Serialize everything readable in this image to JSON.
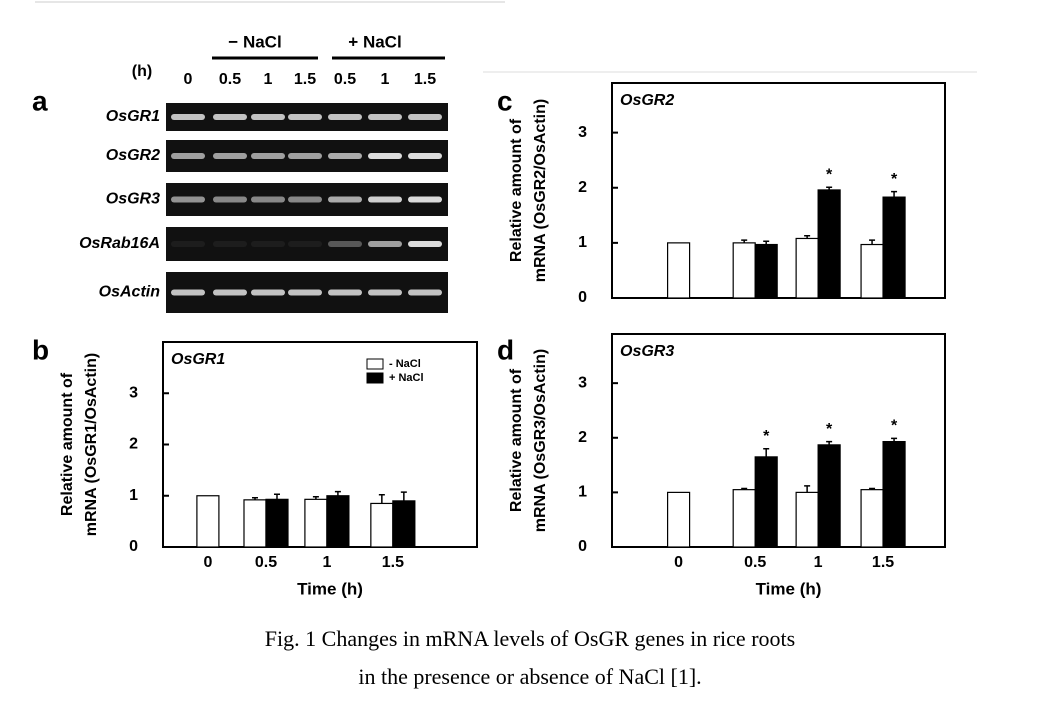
{
  "gel": {
    "panel": "a",
    "hours_label": "(h)",
    "groups": [
      "− NaCl",
      "+ NaCl"
    ],
    "lanes": [
      "0",
      "0.5",
      "1",
      "1.5",
      "0.5",
      "1",
      "1.5"
    ],
    "genes": [
      "OsGR1",
      "OsGR2",
      "OsGR3",
      "OsRab16A",
      "OsActin"
    ]
  },
  "chart_data": [
    {
      "type": "bar",
      "panel": "b",
      "title": "OsGR1",
      "ylabel": [
        "Relative amount of",
        "mRNA (OsGR1/OsActin)"
      ],
      "xlabel": "Time (h)",
      "categories": [
        "0",
        "0.5",
        "1",
        "1.5"
      ],
      "series": [
        {
          "name": "- NaCl",
          "color": "#ffffff",
          "values": [
            1.0,
            0.92,
            0.93,
            0.85
          ],
          "errors": [
            0,
            0.04,
            0.05,
            0.17
          ]
        },
        {
          "name": "+ NaCl",
          "color": "#000000",
          "values": [
            null,
            0.93,
            1.0,
            0.9
          ],
          "errors": [
            null,
            0.1,
            0.08,
            0.17
          ]
        }
      ],
      "ylim": [
        0,
        4
      ],
      "yticks": [
        0,
        1,
        2,
        3
      ],
      "legend": "upper right"
    },
    {
      "type": "bar",
      "panel": "c",
      "title": "OsGR2",
      "ylabel": [
        "Relative amount of",
        "mRNA (OsGR2/OsActin)"
      ],
      "categories": [
        null,
        null,
        null,
        null
      ],
      "series": [
        {
          "color": "#ffffff",
          "values": [
            1.0,
            1.0,
            1.08,
            0.97
          ],
          "errors": [
            0,
            0.05,
            0.05,
            0.08
          ]
        },
        {
          "color": "#000000",
          "values": [
            null,
            0.97,
            1.96,
            1.83
          ],
          "errors": [
            null,
            0.06,
            0.05,
            0.1
          ],
          "markers": [
            null,
            null,
            "*",
            "*"
          ]
        }
      ],
      "ylim": [
        0,
        3.9
      ],
      "yticks": [
        0,
        1,
        2,
        3
      ]
    },
    {
      "type": "bar",
      "panel": "d",
      "title": "OsGR3",
      "ylabel": [
        "Relative amount of",
        "mRNA (OsGR3/OsActin)"
      ],
      "xlabel": "Time (h)",
      "categories": [
        "0",
        "0.5",
        "1",
        "1.5"
      ],
      "series": [
        {
          "color": "#ffffff",
          "values": [
            1.0,
            1.05,
            1.0,
            1.05
          ],
          "errors": [
            0,
            0.02,
            0.12,
            0.02
          ]
        },
        {
          "color": "#000000",
          "values": [
            null,
            1.65,
            1.87,
            1.93
          ],
          "errors": [
            null,
            0.15,
            0.06,
            0.06
          ],
          "markers": [
            null,
            "*",
            "*",
            "*"
          ]
        }
      ],
      "ylim": [
        0,
        3.9
      ],
      "yticks": [
        0,
        1,
        2,
        3
      ]
    }
  ],
  "caption": [
    "Fig. 1 Changes in mRNA levels of OsGR genes in rice roots",
    "in the presence or absence of NaCl [1]."
  ]
}
